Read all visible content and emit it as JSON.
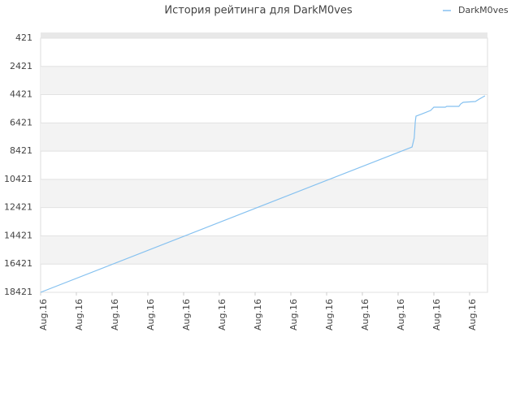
{
  "chart_data": {
    "type": "line",
    "title": "История рейтинга для DarkM0ves",
    "categories": [
      "Aug.16",
      "Aug.16",
      "Aug.16",
      "Aug.16",
      "Aug.16",
      "Aug.16",
      "Aug.16",
      "Aug.16",
      "Aug.16",
      "Aug.16",
      "Aug.16",
      "Aug.16",
      "Aug.16"
    ],
    "xlim": [
      0,
      12.5
    ],
    "ylim": [
      18421,
      421
    ],
    "yticks": [
      421,
      2421,
      4421,
      6421,
      8421,
      10421,
      12421,
      14421,
      16421,
      18421
    ],
    "grid": true,
    "legend": "top-right",
    "series": [
      {
        "name": "DarkM0ves",
        "color": "#85c1f0",
        "x": [
          0,
          10.39,
          10.45,
          10.48,
          10.5,
          10.68,
          10.91,
          11.0,
          11.32,
          11.36,
          11.7,
          11.75,
          11.82,
          12.16,
          12.27,
          12.43
        ],
        "values": [
          18421,
          8127,
          7494,
          6344,
          5942,
          5770,
          5539,
          5309,
          5309,
          5252,
          5252,
          5080,
          4964,
          4907,
          4734,
          4504
        ]
      }
    ]
  }
}
